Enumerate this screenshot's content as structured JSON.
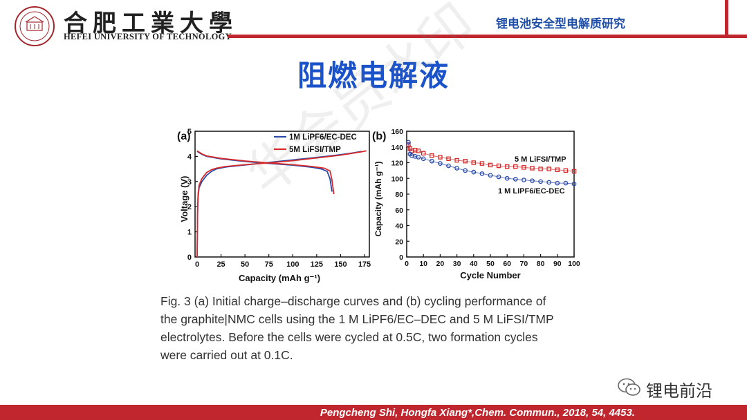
{
  "header": {
    "university_cn": "合肥工業大學",
    "university_en": "HEFEI UNIVERSITY OF TECHNOLOGY",
    "topic": "锂电池安全型电解质研究",
    "accent_color": "#c0262d"
  },
  "slide": {
    "title": "阻燃电解液",
    "title_color": "#1a52c9"
  },
  "figure": {
    "caption_lines": [
      "Fig. 3   (a) Initial charge–discharge curves and (b) cycling performance of",
      "the graphite|NMC cells using the 1 M LiPF6/EC–DEC and 5 M LiFSI/TMP",
      "electrolytes. Before the cells were cycled at 0.5C, two formation cycles",
      "were carried out at 0.1C."
    ]
  },
  "chart_data": [
    {
      "panel": "(a)",
      "type": "line",
      "xlabel": "Capacity (mAh g⁻¹)",
      "ylabel": "Voltage (V)",
      "xlim": [
        0,
        175
      ],
      "ylim": [
        0,
        5
      ],
      "xticks": [
        0,
        25,
        50,
        75,
        100,
        125,
        150,
        175
      ],
      "yticks": [
        0,
        1,
        2,
        3,
        4,
        5
      ],
      "legend_position": "top-right",
      "series": [
        {
          "name": "1M LiPF6/EC-DEC",
          "color": "#2748a8",
          "segments": [
            {
              "x": [
                0,
                0.5,
                1,
                2,
                5,
                10,
                15,
                20,
                30,
                50,
                75,
                100,
                125,
                150,
                165,
                172
              ],
              "y": [
                0.0,
                1.8,
                2.4,
                2.75,
                3.0,
                3.25,
                3.4,
                3.5,
                3.58,
                3.66,
                3.76,
                3.86,
                3.96,
                4.07,
                4.15,
                4.2
              ]
            },
            {
              "x": [
                0,
                5,
                10,
                25,
                50,
                75,
                100,
                120,
                130,
                136,
                139,
                141
              ],
              "y": [
                4.2,
                4.08,
                4.0,
                3.9,
                3.8,
                3.72,
                3.65,
                3.57,
                3.5,
                3.4,
                3.1,
                2.6
              ]
            }
          ]
        },
        {
          "name": "5M LiFSI/TMP",
          "color": "#d62a2a",
          "segments": [
            {
              "x": [
                0,
                0.5,
                1,
                2,
                5,
                10,
                15,
                20,
                30,
                50,
                75,
                100,
                125,
                150,
                170,
                177
              ],
              "y": [
                0.0,
                1.9,
                2.5,
                2.85,
                3.12,
                3.36,
                3.47,
                3.53,
                3.6,
                3.67,
                3.74,
                3.83,
                3.94,
                4.05,
                4.17,
                4.22
              ]
            },
            {
              "x": [
                0,
                5,
                10,
                25,
                50,
                75,
                100,
                120,
                133,
                139,
                141,
                143
              ],
              "y": [
                4.22,
                4.1,
                4.02,
                3.92,
                3.82,
                3.74,
                3.67,
                3.6,
                3.53,
                3.42,
                3.05,
                2.5
              ]
            }
          ]
        }
      ]
    },
    {
      "panel": "(b)",
      "type": "scatter",
      "xlabel": "Cycle Number",
      "ylabel": "Capacity (mAh g⁻¹)",
      "xlim": [
        0,
        100
      ],
      "ylim": [
        0,
        160
      ],
      "xticks": [
        0,
        10,
        20,
        30,
        40,
        50,
        60,
        70,
        80,
        90,
        100
      ],
      "yticks": [
        0,
        20,
        40,
        60,
        80,
        100,
        120,
        140,
        160
      ],
      "series": [
        {
          "name": "5 M LiFSI/TMP",
          "color": "#d62a2a",
          "points": [
            [
              1,
              143
            ],
            [
              2,
              138
            ],
            [
              3,
              135
            ],
            [
              5,
              136
            ],
            [
              7,
              135
            ],
            [
              10,
              132
            ],
            [
              15,
              129
            ],
            [
              20,
              127
            ],
            [
              25,
              125
            ],
            [
              30,
              123
            ],
            [
              35,
              122
            ],
            [
              40,
              120
            ],
            [
              45,
              119
            ],
            [
              50,
              117
            ],
            [
              55,
              116
            ],
            [
              60,
              115
            ],
            [
              65,
              115
            ],
            [
              70,
              114
            ],
            [
              75,
              113
            ],
            [
              80,
              112
            ],
            [
              85,
              112
            ],
            [
              90,
              111
            ],
            [
              95,
              110
            ],
            [
              100,
              109
            ]
          ]
        },
        {
          "name": "1 M LiPF6/EC-DEC",
          "color": "#2748a8",
          "points": [
            [
              1,
              146
            ],
            [
              2,
              131
            ],
            [
              3,
              129
            ],
            [
              5,
              128
            ],
            [
              7,
              127
            ],
            [
              10,
              125
            ],
            [
              15,
              122
            ],
            [
              20,
              119
            ],
            [
              25,
              116
            ],
            [
              30,
              113
            ],
            [
              35,
              110
            ],
            [
              40,
              108
            ],
            [
              45,
              106
            ],
            [
              50,
              104
            ],
            [
              55,
              102
            ],
            [
              60,
              100
            ],
            [
              65,
              99
            ],
            [
              70,
              98
            ],
            [
              75,
              97
            ],
            [
              80,
              96
            ],
            [
              85,
              95
            ],
            [
              90,
              94
            ],
            [
              95,
              94
            ],
            [
              100,
              93
            ]
          ]
        }
      ]
    }
  ],
  "watermark": {
    "text": "锂电前沿",
    "ghost_text": "华会员水印"
  },
  "footer": {
    "citation": "Pengcheng Shi, Hongfa Xiang*,Chem. Commun., 2018, 54, 4453."
  }
}
